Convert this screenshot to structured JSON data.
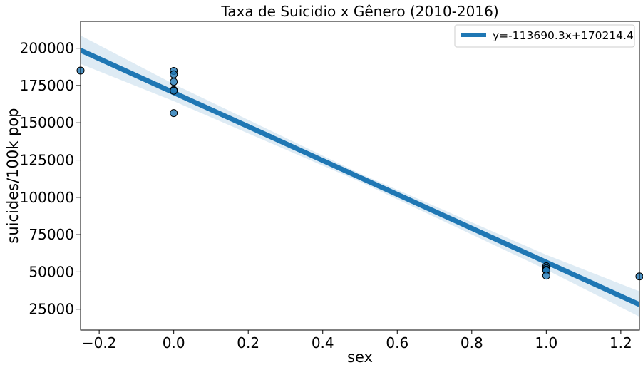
{
  "chart_data": {
    "type": "scatter",
    "title": "Taxa de Suicidio x Gênero (2010-2016)",
    "xlabel": "sex",
    "ylabel": "suicides/100k pop",
    "xlim": [
      -0.25,
      1.25
    ],
    "ylim": [
      11000,
      218000
    ],
    "x_ticks": [
      -0.2,
      0.0,
      0.2,
      0.4,
      0.6,
      0.8,
      1.0,
      1.2
    ],
    "x_tick_labels": [
      "−0.2",
      "0.0",
      "0.2",
      "0.4",
      "0.6",
      "0.8",
      "1.0",
      "1.2"
    ],
    "y_ticks": [
      25000,
      50000,
      75000,
      100000,
      125000,
      150000,
      175000,
      200000
    ],
    "y_tick_labels": [
      "25000",
      "50000",
      "75000",
      "100000",
      "125000",
      "150000",
      "175000",
      "200000"
    ],
    "grid": false,
    "legend_position": "top-right",
    "points": [
      {
        "x": -0.25,
        "y": 185000
      },
      {
        "x": 0.0,
        "y": 184800
      },
      {
        "x": 0.0,
        "y": 182500
      },
      {
        "x": 0.0,
        "y": 177500
      },
      {
        "x": 0.0,
        "y": 172000
      },
      {
        "x": 0.0,
        "y": 171500
      },
      {
        "x": 0.0,
        "y": 156500
      },
      {
        "x": 1.0,
        "y": 53800
      },
      {
        "x": 1.0,
        "y": 52500
      },
      {
        "x": 1.0,
        "y": 51500
      },
      {
        "x": 1.0,
        "y": 51000
      },
      {
        "x": 1.0,
        "y": 47500
      },
      {
        "x": 1.25,
        "y": 47000
      }
    ],
    "regression": {
      "label": "y=-113690.3x+170214.4",
      "slope": -113690.3,
      "intercept": 170214.4,
      "ci_band": [
        {
          "x": -0.25,
          "lower": 189500,
          "upper": 208500
        },
        {
          "x": 0.0,
          "lower": 164500,
          "upper": 176000
        },
        {
          "x": 0.5,
          "lower": 110500,
          "upper": 116000
        },
        {
          "x": 1.0,
          "lower": 51500,
          "upper": 61500
        },
        {
          "x": 1.25,
          "lower": 20000,
          "upper": 37000
        }
      ]
    },
    "colors": {
      "line": "#1f77b4",
      "points": "#1f77b4",
      "band": "#1f77b4",
      "point_edge": "#000000"
    }
  }
}
